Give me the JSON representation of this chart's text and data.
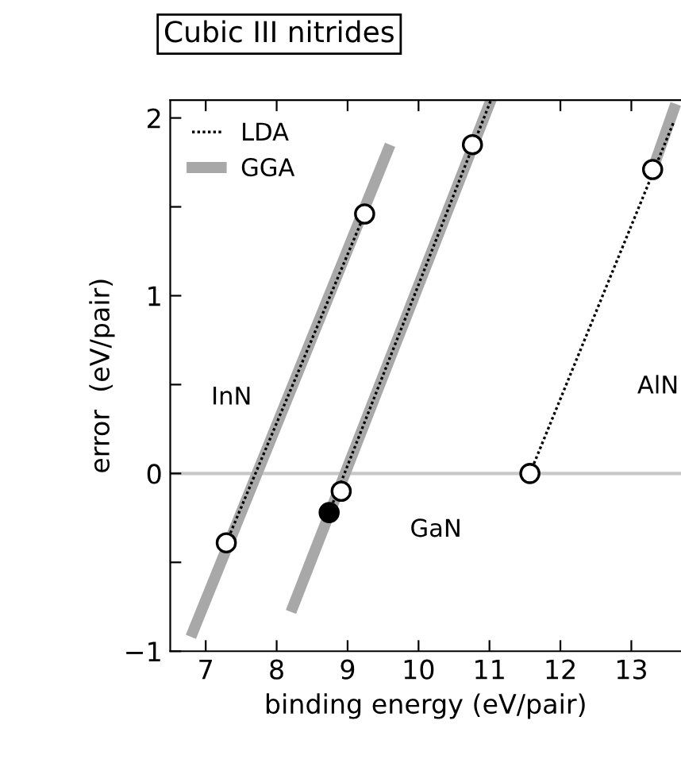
{
  "chart_data": {
    "type": "line",
    "title": "Cubic III nitrides",
    "xlabel": "binding energy (eV/pair)",
    "ylabel": "error  (eV/pair)",
    "xlim": [
      6.5,
      13.7
    ],
    "xticks": [
      7,
      8,
      9,
      10,
      11,
      12,
      13
    ],
    "ylim": [
      -1,
      2.1
    ],
    "yticks": [
      -1,
      {
        "value": -0.5,
        "label": null
      },
      0,
      {
        "value": 0.5,
        "label": null
      },
      1,
      {
        "value": 1.5,
        "label": null
      },
      2
    ],
    "grid": false,
    "legend": "top left",
    "series": [
      {
        "name": "LDA",
        "color": "#000000",
        "line_style": "dotted",
        "x": [
          7.29,
          9.24
        ],
        "values": [
          -0.39,
          1.46
        ]
      },
      {
        "color": "#000000",
        "line_style": "dotted",
        "x": [
          8.74,
          11.02
        ],
        "values": [
          -0.22,
          2.1
        ]
      },
      {
        "color": "#000000",
        "line_style": "dotted",
        "x": [
          11.57,
          13.6
        ],
        "values": [
          0.0,
          1.98
        ]
      },
      {
        "name": "GGA",
        "color": "#a8a8a8",
        "x": [
          6.82,
          9.57
        ],
        "values": [
          -0.89,
          1.82
        ]
      },
      {
        "color": "#a8a8a8",
        "x": [
          8.23,
          11.02
        ],
        "values": [
          -0.75,
          2.1
        ]
      },
      {
        "color": "#a8a8a8",
        "x": [
          13.3,
          13.6
        ],
        "values": [
          1.71,
          2.05
        ]
      },
      {
        "type": "scatter",
        "marker": "circle",
        "color": "#ffffff",
        "x": [
          7.29,
          9.24,
          8.91,
          10.76,
          11.57,
          13.3
        ],
        "values": [
          -0.39,
          1.46,
          -0.1,
          1.85,
          0.0,
          1.71
        ]
      },
      {
        "type": "scatter",
        "marker": "circle",
        "color": "#000000",
        "x": [
          8.74
        ],
        "values": [
          -0.22
        ]
      }
    ],
    "ref_lines": [
      {
        "axis": "y",
        "value": 0,
        "color": "#c8c8c8"
      }
    ],
    "annotations": [
      "InN",
      "GaN",
      "AlN"
    ]
  }
}
